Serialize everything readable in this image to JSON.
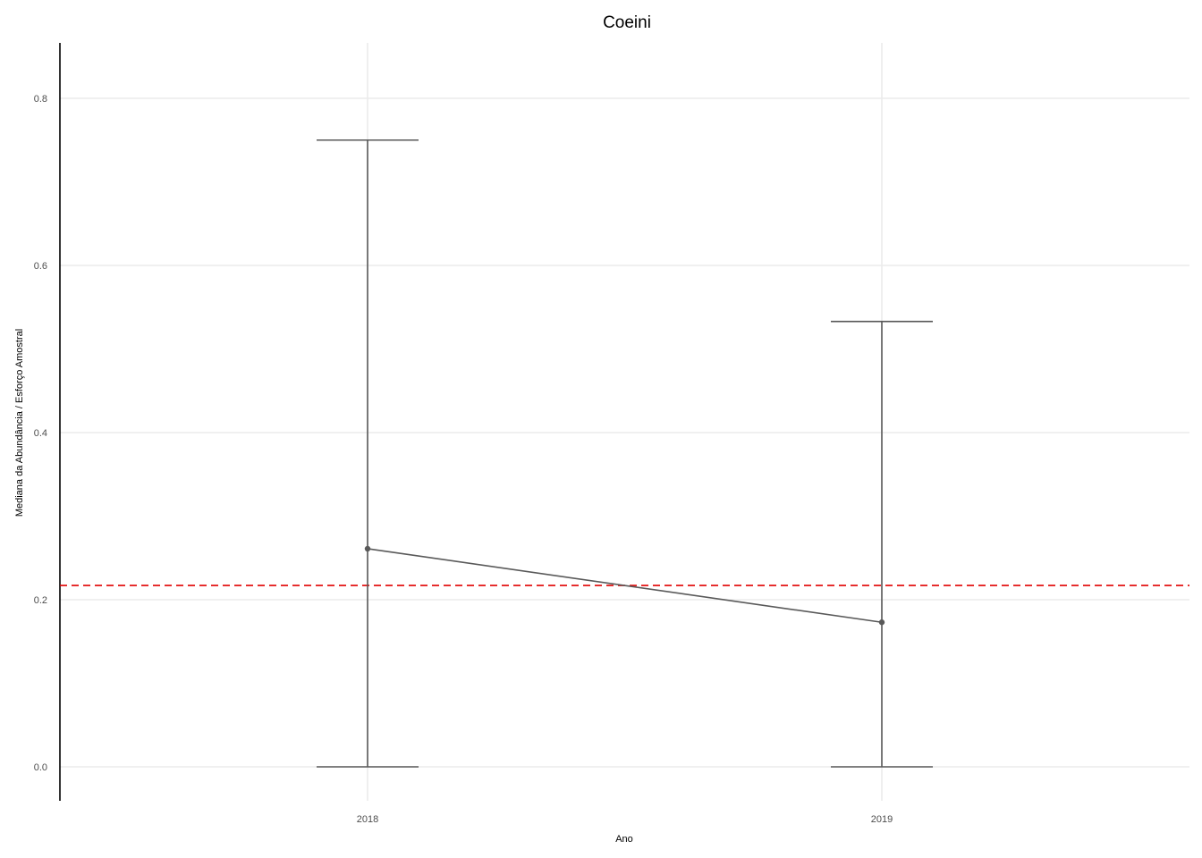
{
  "chart_data": {
    "type": "line",
    "title": "Coeini",
    "xlabel": "Ano",
    "ylabel": "Mediana da Abundância / Esforço Amostral",
    "categories": [
      "2018",
      "2019"
    ],
    "yticks": [
      "0.0",
      "0.2",
      "0.4",
      "0.6",
      "0.8"
    ],
    "ytick_values": [
      0.0,
      0.2,
      0.4,
      0.6,
      0.8
    ],
    "ylim": [
      -0.04,
      0.87
    ],
    "grid": true,
    "series": [
      {
        "values": [
          0.261,
          0.173
        ],
        "lower": [
          0.0,
          0.0
        ],
        "upper": [
          0.75,
          0.533
        ],
        "color": "#595959"
      }
    ],
    "reference_line": {
      "value": 0.217,
      "color": "#e00000",
      "style": "dashed"
    }
  }
}
